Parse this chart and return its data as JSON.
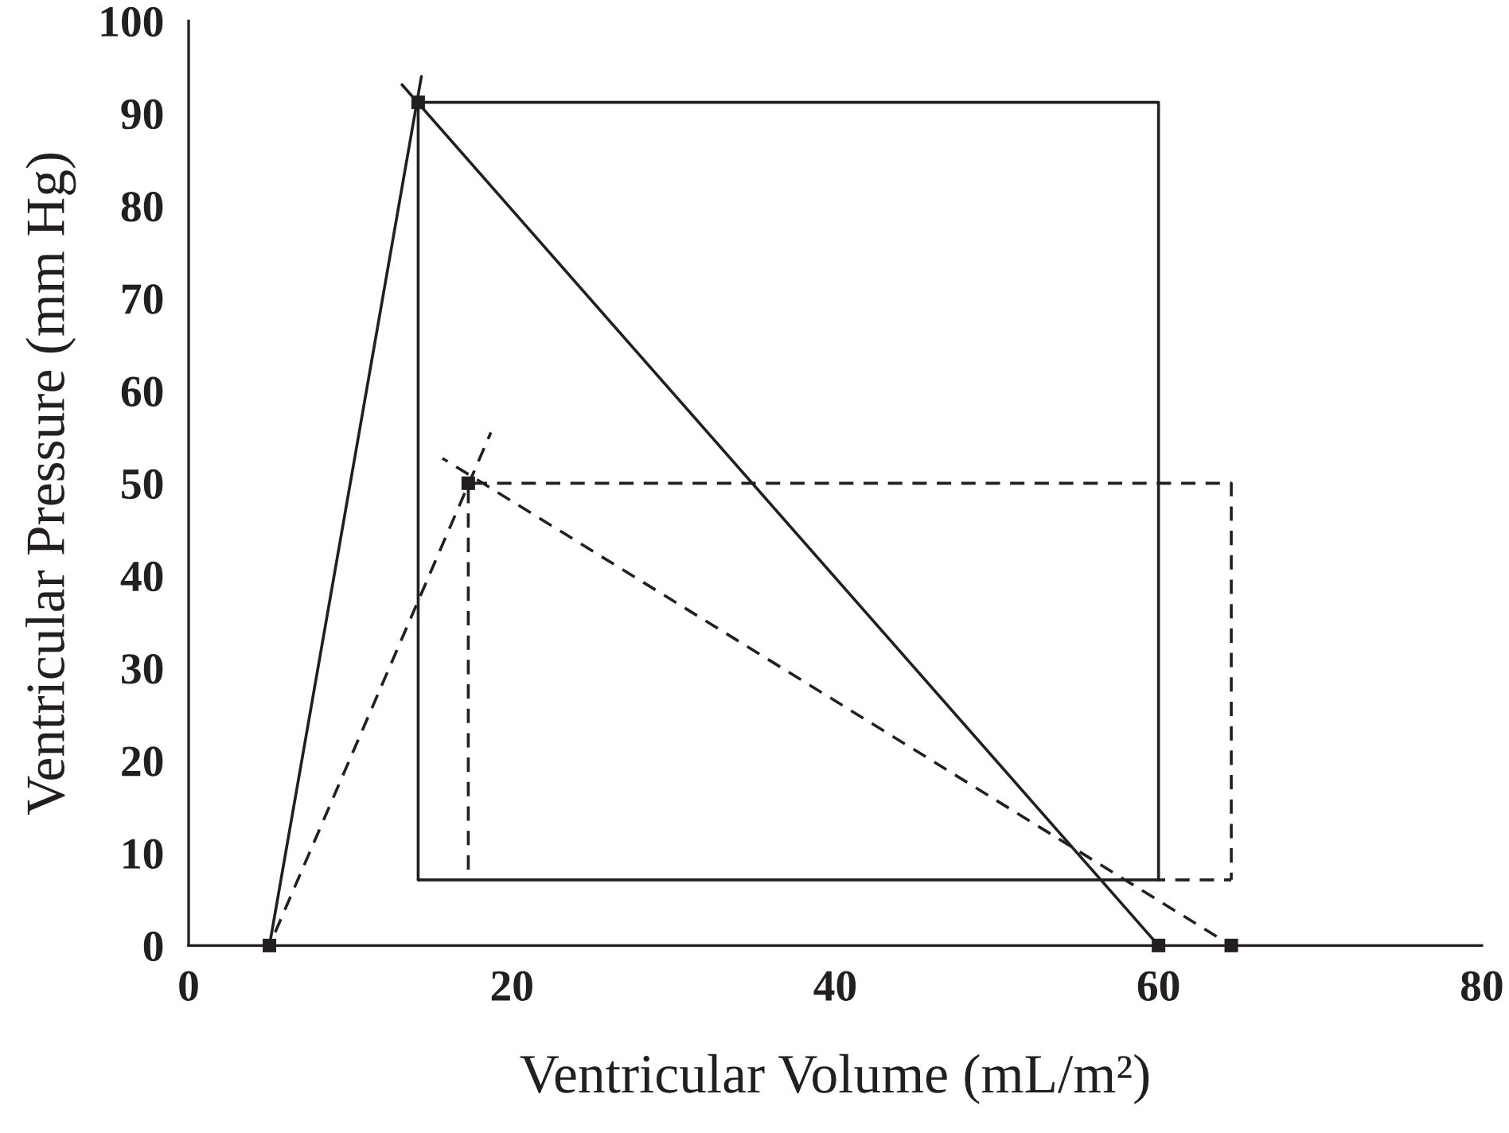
{
  "chart_data": {
    "type": "line",
    "xlabel": "Ventricular Volume (mL/m²)",
    "ylabel": "Ventricular Pressure (mm Hg)",
    "xlim": [
      0,
      80
    ],
    "ylim": [
      0,
      100
    ],
    "xticks": [
      0,
      20,
      40,
      60,
      80
    ],
    "yticks": [
      0,
      10,
      20,
      30,
      40,
      50,
      60,
      70,
      80,
      90,
      100
    ],
    "grid": false,
    "legend": false,
    "series": [
      {
        "color": "#231f20",
        "line_style": "solid",
        "marker": "none",
        "x": [
          5,
          14.4
        ],
        "values": [
          0,
          94
        ]
      },
      {
        "color": "#231f20",
        "line_style": "solid",
        "marker": "none",
        "x": [
          13.2,
          60
        ],
        "values": [
          93.1,
          0
        ]
      },
      {
        "color": "#231f20",
        "line_style": "solid",
        "marker": "none",
        "x": [
          14.2,
          14.2,
          60,
          60
        ],
        "values": [
          7.1,
          91.2,
          91.2,
          7.1
        ]
      },
      {
        "color": "#231f20",
        "line_style": "solid",
        "marker": "none",
        "x": [
          14.2,
          60
        ],
        "values": [
          7.1,
          7.1
        ]
      },
      {
        "color": "#231f20",
        "line_style": "dashed",
        "marker": "none",
        "x": [
          5,
          18.7
        ],
        "values": [
          0,
          55.5
        ]
      },
      {
        "color": "#231f20",
        "line_style": "dashed",
        "marker": "none",
        "x": [
          15.7,
          64.5
        ],
        "values": [
          52.7,
          0
        ]
      },
      {
        "color": "#231f20",
        "line_style": "dashed",
        "marker": "none",
        "x": [
          17.3,
          17.3,
          64.5,
          64.5
        ],
        "values": [
          7.1,
          50,
          50,
          7.1
        ]
      },
      {
        "color": "#231f20",
        "line_style": "dashed",
        "marker": "none",
        "x": [
          60,
          64.5
        ],
        "values": [
          7.1,
          7.1
        ]
      },
      {
        "type": "scatter",
        "color": "#231f20",
        "marker": "square",
        "x": [
          5,
          14.2,
          60
        ],
        "values": [
          0,
          91.2,
          0
        ]
      },
      {
        "type": "scatter",
        "color": "#231f20",
        "marker": "square",
        "x": [
          17.3,
          64.5
        ],
        "values": [
          50,
          0
        ]
      }
    ]
  }
}
